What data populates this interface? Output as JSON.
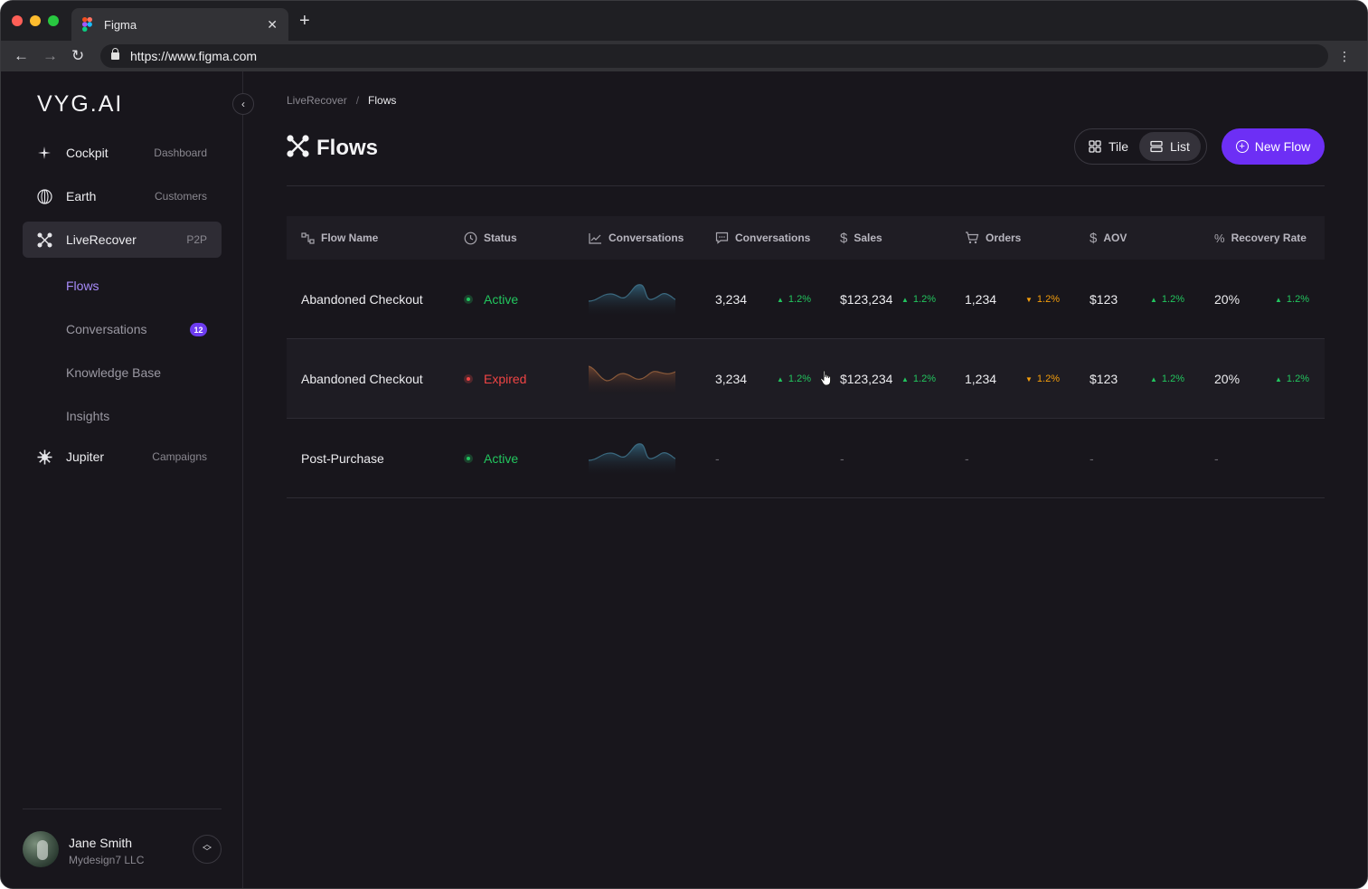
{
  "browser": {
    "tab_title": "Figma",
    "url": "https://www.figma.com"
  },
  "sidebar": {
    "logo": "VYG.AI",
    "nav": [
      {
        "label": "Cockpit",
        "hint": "Dashboard",
        "icon": "sparkle-icon"
      },
      {
        "label": "Earth",
        "hint": "Customers",
        "icon": "globe-icon"
      },
      {
        "label": "LiveRecover",
        "hint": "P2P",
        "icon": "nodes-icon",
        "active": true
      }
    ],
    "sub_items": [
      {
        "label": "Flows",
        "active": true
      },
      {
        "label": "Conversations",
        "badge": "12"
      },
      {
        "label": "Knowledge Base"
      },
      {
        "label": "Insights"
      }
    ],
    "nav_bottom": {
      "label": "Jupiter",
      "hint": "Campaigns",
      "icon": "starburst-icon"
    },
    "user": {
      "name": "Jane Smith",
      "org": "Mydesign7 LLC"
    }
  },
  "main": {
    "breadcrumb": {
      "parent": "LiveRecover",
      "separator": "/",
      "current": "Flows"
    },
    "title": "Flows",
    "view_toggle": {
      "tile": "Tile",
      "list": "List",
      "selected": "List"
    },
    "new_flow_label": "New Flow",
    "columns": [
      "Flow Name",
      "Status",
      "Conversations",
      "Conversations",
      "Sales",
      "Orders",
      "AOV",
      "Recovery Rate"
    ],
    "rows": [
      {
        "name": "Abandoned Checkout",
        "status": "Active",
        "status_type": "active",
        "spark_color": "#3b6a80",
        "conversations": "3,234",
        "conversations_delta": "1.2%",
        "conversations_dir": "up",
        "sales": "$123,234",
        "sales_delta": "1.2%",
        "sales_dir": "up",
        "orders": "1,234",
        "orders_delta": "1.2%",
        "orders_dir": "down",
        "aov": "$123",
        "aov_delta": "1.2%",
        "aov_dir": "up",
        "recovery": "20%",
        "recovery_delta": "1.2%",
        "recovery_dir": "up"
      },
      {
        "name": "Abandoned Checkout",
        "status": "Expired",
        "status_type": "expired",
        "spark_color": "#8a5a3a",
        "conversations": "3,234",
        "conversations_delta": "1.2%",
        "conversations_dir": "up",
        "sales": "$123,234",
        "sales_delta": "1.2%",
        "sales_dir": "up",
        "orders": "1,234",
        "orders_delta": "1.2%",
        "orders_dir": "down",
        "aov": "$123",
        "aov_delta": "1.2%",
        "aov_dir": "up",
        "recovery": "20%",
        "recovery_delta": "1.2%",
        "recovery_dir": "up"
      },
      {
        "name": "Post-Purchase",
        "status": "Active",
        "status_type": "active",
        "spark_color": "#3b6a80",
        "conversations": "-",
        "sales": "-",
        "orders": "-",
        "aov": "-",
        "recovery": "-"
      }
    ]
  },
  "colors": {
    "accent": "#6d2ff5",
    "active": "#22c55e",
    "expired": "#ef4444",
    "trend_down": "#f59e0b"
  }
}
